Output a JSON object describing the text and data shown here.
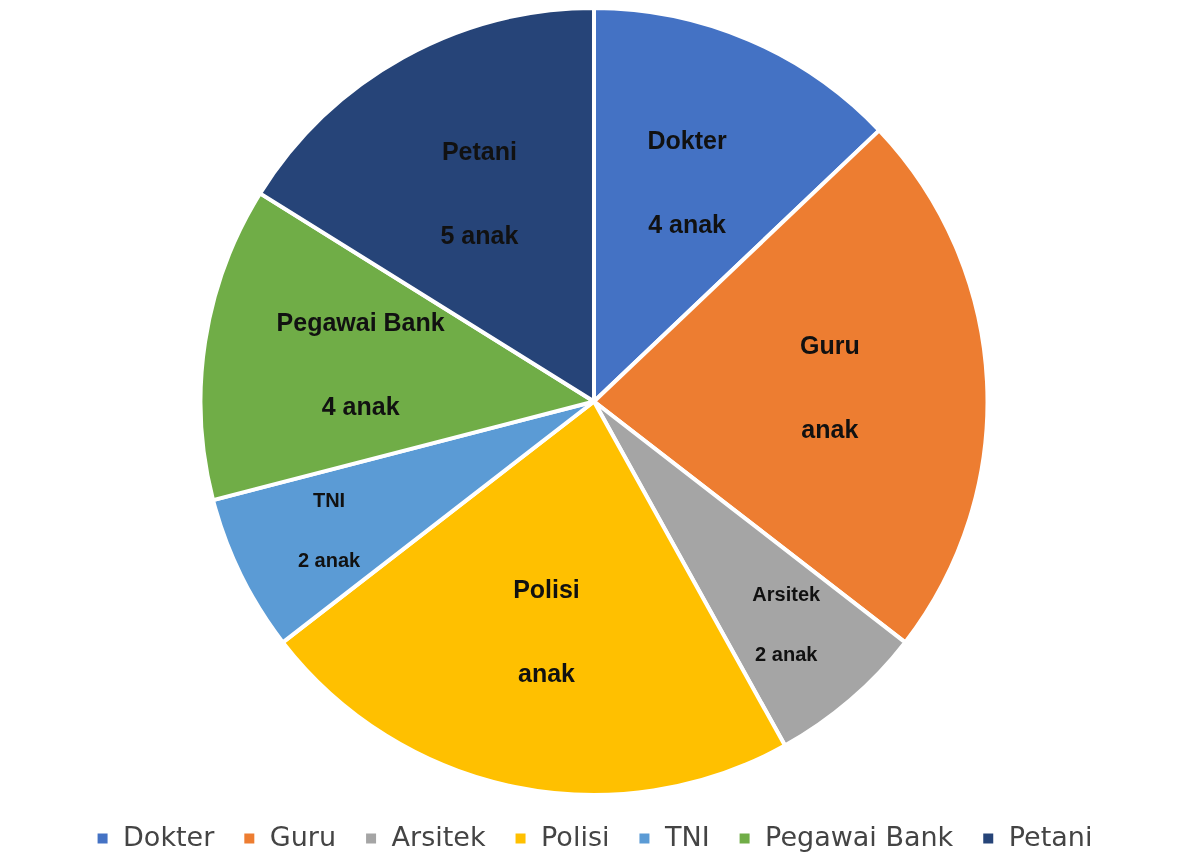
{
  "chart_data": {
    "type": "pie",
    "categories": [
      "Dokter",
      "Guru",
      "Arsitek",
      "Polisi",
      "TNI",
      "Pegawai Bank",
      "Petani"
    ],
    "values": [
      4,
      7,
      2,
      7,
      2,
      4,
      5
    ],
    "value_labels": [
      "4 anak",
      "anak",
      "2 anak",
      "anak",
      "2 anak",
      "4 anak",
      "5 anak"
    ],
    "colors": [
      "#4472c4",
      "#ed7d31",
      "#a5a5a5",
      "#ffc000",
      "#5b9bd5",
      "#70ad47",
      "#264478"
    ],
    "legend": "bottom"
  }
}
